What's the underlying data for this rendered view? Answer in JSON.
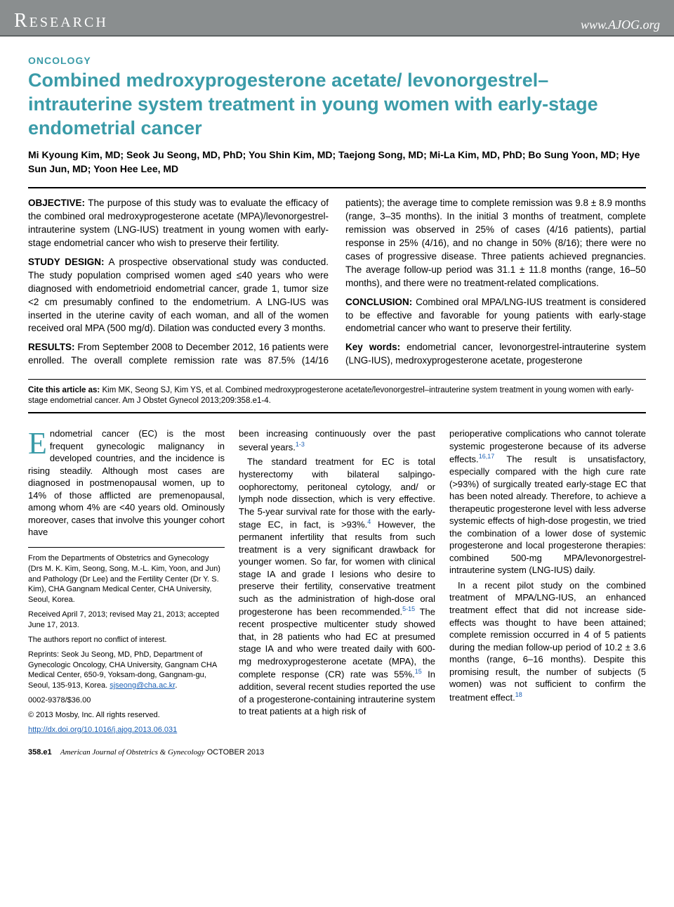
{
  "header": {
    "left": "Research",
    "right": "www.AJOG.org"
  },
  "section_label": "ONCOLOGY",
  "title": "Combined medroxyprogesterone acetate/ levonorgestrel–intrauterine system treatment in young women with early-stage endometrial cancer",
  "authors": "Mi Kyoung Kim, MD; Seok Ju Seong, MD, PhD; You Shin Kim, MD; Taejong Song, MD; Mi-La Kim, MD, PhD; Bo Sung Yoon, MD; Hye Sun Jun, MD; Yoon Hee Lee, MD",
  "abstract": {
    "objective_label": "OBJECTIVE:",
    "objective": " The purpose of this study was to evaluate the efficacy of the combined oral medroxyprogesterone acetate (MPA)/levonorgestrel-intrauterine system (LNG-IUS) treatment in young women with early-stage endometrial cancer who wish to preserve their fertility.",
    "design_label": "STUDY DESIGN:",
    "design": " A prospective observational study was conducted. The study population comprised women aged ≤40 years who were diagnosed with endometrioid endometrial cancer, grade 1, tumor size <2 cm presumably confined to the endometrium. A LNG-IUS was inserted in the uterine cavity of each woman, and all of the women received oral MPA (500 mg/d). Dilation was conducted every 3 months.",
    "results_label": "RESULTS:",
    "results": " From September 2008 to December 2012, 16 patients were enrolled. The overall complete remission rate was 87.5% (14/16 patients); the average time to complete remission was 9.8 ± 8.9 months (range, 3–35 months). In the initial 3 months of treatment, complete remission was observed in 25% of cases (4/16 patients), partial response in 25% (4/16), and no change in 50% (8/16); there were no cases of progressive disease. Three patients achieved pregnancies. The average follow-up period was 31.1 ± 11.8 months (range, 16–50 months), and there were no treatment-related complications.",
    "conclusion_label": "CONCLUSION:",
    "conclusion": " Combined oral MPA/LNG-IUS treatment is considered to be effective and favorable for young patients with early-stage endometrial cancer who want to preserve their fertility.",
    "keywords_label": "Key words:",
    "keywords": " endometrial cancer, levonorgestrel-intrauterine system (LNG-IUS), medroxyprogesterone acetate, progesterone"
  },
  "cite": {
    "label": "Cite this article as: ",
    "text": "Kim MK, Seong SJ, Kim YS, et al. Combined medroxyprogesterone acetate/levonorgestrel–intrauterine system treatment in young women with early-stage endometrial cancer. Am J Obstet Gynecol 2013;209:358.e1-4."
  },
  "body": {
    "p1a": "ndometrial cancer (EC) is the most frequent gynecologic malignancy in developed countries, and the incidence is rising steadily. Although most cases are diagnosed in postmenopausal women, up to 14% of those afflicted are premenopausal, among whom 4% are <40 years old. Ominously moreover, cases that involve this younger cohort have",
    "p2a": "been increasing continuously over the past several years.",
    "p2_ref": "1-3",
    "p3": "The standard treatment for EC is total hysterectomy with bilateral salpingo-oophorectomy, peritoneal cytology, and/ or lymph node dissection, which is very effective. The 5-year survival rate for those with the early-stage EC, in fact, is >93%.",
    "p3_ref1": "4",
    "p3b": " However, the permanent infertility that results from such treatment is a very significant drawback for younger women. So far, for women with clinical stage IA and grade I lesions who desire to preserve their fertility, conservative treatment such as the administration of high-dose oral progesterone has been recommended.",
    "p3_ref2": "5-15",
    "p3c": " The recent prospective multicenter study showed that, in 28 patients who had EC at presumed stage IA and who were treated daily with 600-mg medroxyprogesterone acetate (MPA), the complete response (CR) rate was 55%.",
    "p3_ref3": "15",
    "p3d": " In addition, several recent studies reported the use of a progesterone-containing intrauterine system to treat patients at a high risk of",
    "p4a": "perioperative complications who cannot tolerate systemic progesterone because of its adverse effects.",
    "p4_ref1": "16,17",
    "p4b": " The result is unsatisfactory, especially compared with the high cure rate (>93%) of surgically treated early-stage EC that has been noted already. Therefore, to achieve a therapeutic progesterone level with less adverse systemic effects of high-dose progestin, we tried the combination of a lower dose of systemic progesterone and local progesterone therapies: combined 500-mg MPA/levonorgestrel-intrauterine system (LNG-IUS) daily.",
    "p5": "In a recent pilot study on the combined treatment of MPA/LNG-IUS, an enhanced treatment effect that did not increase side-effects was thought to have been attained; complete remission occurred in 4 of 5 patients during the median follow-up period of 10.2 ± 3.6 months (range, 6–16 months). Despite this promising result, the number of subjects (5 women) was not sufficient to confirm the treatment effect.",
    "p5_ref": "18"
  },
  "affil": {
    "p1": "From the Departments of Obstetrics and Gynecology (Drs M. K. Kim, Seong, Song, M.-L. Kim, Yoon, and Jun) and Pathology (Dr Lee) and the Fertility Center (Dr Y. S. Kim), CHA Gangnam Medical Center, CHA University, Seoul, Korea.",
    "p2": "Received April 7, 2013; revised May 21, 2013; accepted June 17, 2013.",
    "p3": "The authors report no conflict of interest.",
    "p4": "Reprints: Seok Ju Seong, MD, PhD, Department of Gynecologic Oncology, CHA University, Gangnam CHA Medical Center, 650-9, Yoksam-dong, Gangnam-gu, Seoul, 135-913, Korea. ",
    "email": "sjseong@cha.ac.kr",
    "p5": "0002-9378/$36.00",
    "p6": "© 2013 Mosby, Inc. All rights reserved.",
    "doi": "http://dx.doi.org/10.1016/j.ajog.2013.06.031"
  },
  "footer": {
    "page": "358.e1",
    "journal": "American Journal of Obstetrics & Gynecology",
    "issue": " OCTOBER 2013"
  },
  "colors": {
    "teal": "#3a9ba8",
    "header_bg": "#8a8e8f",
    "link": "#1a5fb4"
  }
}
